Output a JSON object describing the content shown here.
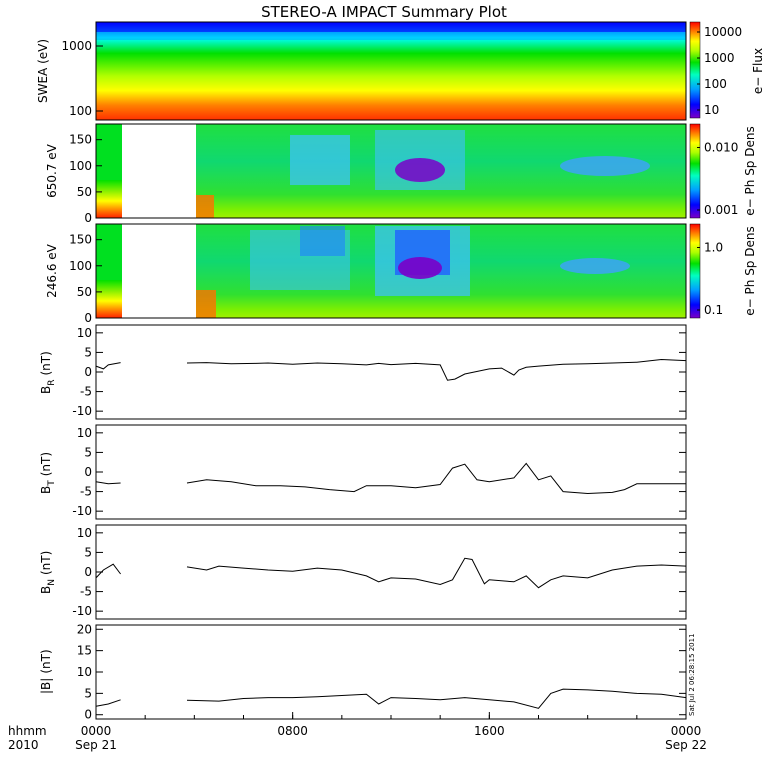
{
  "title": "STEREO-A IMPACT Summary Plot",
  "footer": {
    "hhmm_label": "hhmm",
    "year_label": "2010",
    "x_ticks": [
      "0000",
      "0800",
      "1600",
      "0000"
    ],
    "x_dates": [
      "Sep 21",
      "",
      "",
      "Sep 22"
    ],
    "stamp": "Sat Jul  2 06:28:15 2011"
  },
  "colors": {
    "line": "#000000",
    "spectrogram_scale": [
      "#7a00c8",
      "#0000ff",
      "#00a0ff",
      "#00ffc0",
      "#00e000",
      "#b0ff00",
      "#ffff00",
      "#ff8000",
      "#ff0000"
    ]
  },
  "chart_data": [
    {
      "type": "heatmap",
      "ylabel": "SWEA (eV)",
      "y_ticks": [
        "1000",
        "100"
      ],
      "colorbar_label": "e− Flux",
      "colorbar_ticks": [
        "10000",
        "1000",
        "100",
        "10"
      ],
      "scale": "log"
    },
    {
      "type": "heatmap",
      "ylabel": "650.7 eV",
      "y_ticks": [
        "150",
        "100",
        "50",
        "0"
      ],
      "ylim": [
        0,
        180
      ],
      "colorbar_label": "e− Ph Sp Dens",
      "colorbar_ticks": [
        "0.010",
        "0.001"
      ],
      "data_gap_hours": [
        1.1,
        3.7
      ]
    },
    {
      "type": "heatmap",
      "ylabel": "246.6 eV",
      "y_ticks": [
        "150",
        "100",
        "50",
        "0"
      ],
      "ylim": [
        0,
        180
      ],
      "colorbar_label": "e− Ph Sp Dens",
      "colorbar_ticks": [
        "1.0",
        "0.1"
      ],
      "data_gap_hours": [
        1.1,
        3.7
      ]
    },
    {
      "type": "line",
      "ylabel": "B",
      "ylabel_sub": "R",
      "ylabel_unit": "(nT)",
      "ylim": [
        -12,
        12
      ],
      "y_ticks": [
        "10",
        "5",
        "0",
        "-5",
        "-10"
      ],
      "x": [
        0,
        0.3,
        0.5,
        1.0,
        3.7,
        4.5,
        5.5,
        6.5,
        7.0,
        8.0,
        9.0,
        10.0,
        11.0,
        11.5,
        12.0,
        13.0,
        14.0,
        14.3,
        14.6,
        15.0,
        16.0,
        16.5,
        17.0,
        17.2,
        17.5,
        18.0,
        19.0,
        20.0,
        21.0,
        22.0,
        23.0,
        24.0
      ],
      "y": [
        1.5,
        0.8,
        1.8,
        2.4,
        2.3,
        2.4,
        2.1,
        2.2,
        2.3,
        2.0,
        2.3,
        2.1,
        1.8,
        2.2,
        1.9,
        2.2,
        1.8,
        -2.1,
        -1.8,
        -0.5,
        0.8,
        1.0,
        -0.8,
        0.5,
        1.2,
        1.5,
        2.0,
        2.1,
        2.3,
        2.5,
        3.2,
        2.9
      ]
    },
    {
      "type": "line",
      "ylabel": "B",
      "ylabel_sub": "T",
      "ylabel_unit": "(nT)",
      "ylim": [
        -12,
        12
      ],
      "y_ticks": [
        "10",
        "5",
        "0",
        "-5",
        "-10"
      ],
      "x": [
        0,
        0.5,
        1.0,
        3.7,
        4.5,
        5.5,
        6.5,
        7.5,
        8.5,
        9.5,
        10.5,
        11.0,
        12.0,
        13.0,
        14.0,
        14.5,
        15.0,
        15.5,
        16.0,
        17.0,
        17.5,
        18.0,
        18.5,
        19.0,
        20.0,
        21.0,
        21.5,
        22.0,
        23.0,
        24.0
      ],
      "y": [
        -2.5,
        -3.0,
        -2.8,
        -2.8,
        -2.0,
        -2.5,
        -3.5,
        -3.5,
        -3.8,
        -4.5,
        -5.0,
        -3.5,
        -3.5,
        -4.0,
        -3.2,
        1.0,
        2.0,
        -2.0,
        -2.5,
        -1.5,
        2.2,
        -2.0,
        -1.0,
        -5.0,
        -5.5,
        -5.2,
        -4.5,
        -3.0,
        -3.0,
        -3.0
      ]
    },
    {
      "type": "line",
      "ylabel": "B",
      "ylabel_sub": "N",
      "ylabel_unit": "(nT)",
      "ylim": [
        -12,
        12
      ],
      "y_ticks": [
        "10",
        "5",
        "0",
        "-5",
        "-10"
      ],
      "x": [
        0,
        0.3,
        0.7,
        1.0,
        3.7,
        4.5,
        5.0,
        6.0,
        7.0,
        8.0,
        9.0,
        10.0,
        11.0,
        11.5,
        12.0,
        13.0,
        14.0,
        14.5,
        15.0,
        15.3,
        15.8,
        16.0,
        17.0,
        17.5,
        18.0,
        18.5,
        19.0,
        20.0,
        21.0,
        22.0,
        23.0,
        24.0
      ],
      "y": [
        -1.5,
        0.5,
        2.0,
        -0.5,
        1.3,
        0.5,
        1.5,
        1.0,
        0.5,
        0.2,
        1.0,
        0.5,
        -1.0,
        -2.5,
        -1.5,
        -1.8,
        -3.2,
        -2.0,
        3.5,
        3.2,
        -3.0,
        -2.0,
        -2.5,
        -1.0,
        -4.0,
        -2.0,
        -1.0,
        -1.5,
        0.5,
        1.5,
        1.8,
        1.5
      ]
    },
    {
      "type": "line",
      "ylabel": "|B|",
      "ylabel_unit": "(nT)",
      "ylim": [
        -1,
        21
      ],
      "y_ticks": [
        "20",
        "15",
        "10",
        "5",
        "0"
      ],
      "x": [
        0,
        0.5,
        1.0,
        3.7,
        5.0,
        6.0,
        7.0,
        8.0,
        9.0,
        10.0,
        11.0,
        11.5,
        12.0,
        13.0,
        14.0,
        15.0,
        16.0,
        17.0,
        18.0,
        18.5,
        19.0,
        20.0,
        21.0,
        22.0,
        23.0,
        24.0
      ],
      "y": [
        2.0,
        2.5,
        3.5,
        3.4,
        3.2,
        3.8,
        4.0,
        4.0,
        4.2,
        4.5,
        4.8,
        2.5,
        4.0,
        3.8,
        3.5,
        4.0,
        3.5,
        3.0,
        1.5,
        5.0,
        6.0,
        5.8,
        5.5,
        5.0,
        4.8,
        4.0
      ]
    }
  ]
}
